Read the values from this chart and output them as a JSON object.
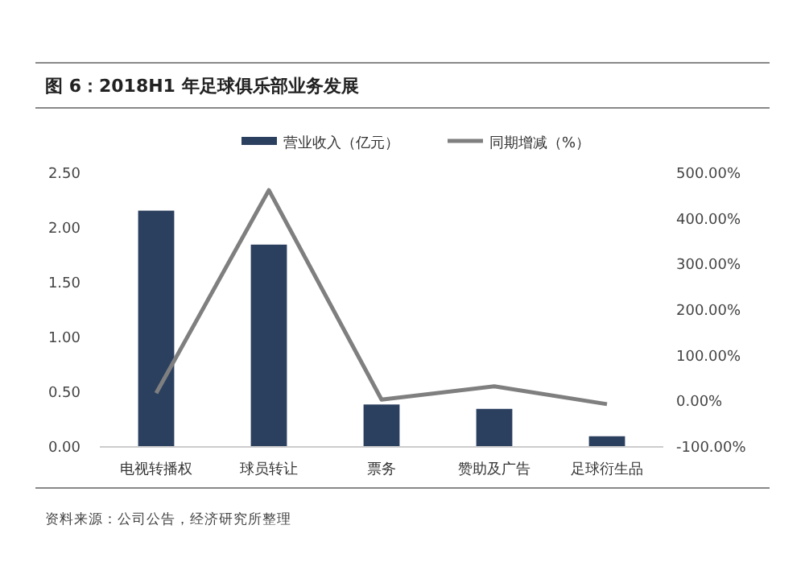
{
  "chart_data": {
    "type": "bar",
    "title": "图 6：2018H1 年足球俱乐部业务发展",
    "categories": [
      "电视转播权",
      "球员转让",
      "票务",
      "赞助及广告",
      "足球衍生品"
    ],
    "series": [
      {
        "name": "营业收入（亿元）",
        "color": "#2b3f5f",
        "values": [
          2.15,
          1.84,
          0.38,
          0.34,
          0.09
        ]
      },
      {
        "name": "同期增减（%）",
        "type": "line",
        "axis": "y2",
        "color": "#7f7f7f",
        "values": [
          16,
          461,
          2,
          31,
          -8
        ]
      }
    ],
    "ylim": [
      0,
      2.5
    ],
    "yticks": [
      {
        "value": 0,
        "label": "0.00"
      },
      {
        "value": 0.5,
        "label": "0.50"
      },
      {
        "value": 1,
        "label": "1.00"
      },
      {
        "value": 1.5,
        "label": "1.50"
      },
      {
        "value": 2,
        "label": "2.00"
      },
      {
        "value": 2.5,
        "label": "2.50"
      }
    ],
    "y2lim": [
      -100,
      500
    ],
    "y2ticks": [
      {
        "value": -100,
        "label": "-100.00%"
      },
      {
        "value": 0,
        "label": "0.00%"
      },
      {
        "value": 100,
        "label": "100.00%"
      },
      {
        "value": 200,
        "label": "200.00%"
      },
      {
        "value": 300,
        "label": "300.00%"
      },
      {
        "value": 400,
        "label": "400.00%"
      },
      {
        "value": 500,
        "label": "500.00%"
      }
    ],
    "legend": "top",
    "grid": false,
    "marker": "none",
    "annotations": [
      "资料来源：公司公告，经济研究所整理"
    ]
  }
}
